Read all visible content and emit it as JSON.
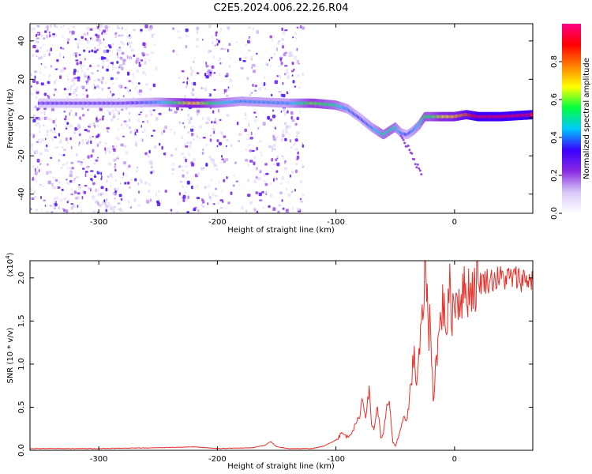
{
  "figure": {
    "title": "C2E5.2024.006.22.26.R04"
  },
  "chart_data": [
    {
      "type": "heatmap",
      "title": "",
      "xlabel": "Height of straight line (km)",
      "ylabel": "Frequency (Hz)",
      "xlim": [
        -358,
        66
      ],
      "ylim": [
        -50,
        49
      ],
      "x_ticks": [
        "-300",
        "-200",
        "-100",
        "0"
      ],
      "x_tick_values": [
        -300,
        -200,
        -100,
        0
      ],
      "y_ticks": [
        "-40",
        "-20",
        "0",
        "20",
        "40"
      ],
      "y_tick_values": [
        -40,
        -20,
        0,
        20,
        40
      ],
      "colorbar": {
        "label": "Normalized spectral amplitude",
        "range": [
          0,
          1
        ],
        "ticks": [
          "0.0",
          "0.2",
          "0.4",
          "0.6",
          "0.8"
        ],
        "tick_values": [
          0.0,
          0.2,
          0.4,
          0.6,
          0.8
        ],
        "colormap": [
          "#ffffff",
          "#d8c8f8",
          "#8a2be2",
          "#3a00ff",
          "#00c8ff",
          "#00ff40",
          "#ffff00",
          "#ff8000",
          "#ff0000",
          "#ff0088"
        ]
      },
      "signal_trace": {
        "x": [
          -350,
          -330,
          -280,
          -250,
          -220,
          -200,
          -180,
          -160,
          -140,
          -120,
          -100,
          -90,
          -80,
          -70,
          -60,
          -50,
          -45,
          -40,
          -35,
          -30,
          -25,
          -20,
          -10,
          0,
          10,
          20,
          40,
          66
        ],
        "freq": [
          7.5,
          7.5,
          7.5,
          8,
          7.5,
          7.5,
          8.5,
          8,
          7.5,
          7.5,
          6.5,
          4.5,
          0,
          -5,
          -9,
          -5,
          -8,
          -9,
          -7,
          -4,
          0.5,
          0.5,
          0.5,
          0.5,
          1.5,
          0.5,
          0.5,
          1.5
        ],
        "amplitude": [
          0.3,
          0.3,
          0.3,
          0.4,
          0.7,
          0.5,
          0.4,
          0.4,
          0.4,
          0.6,
          0.5,
          0.4,
          0.35,
          0.4,
          0.5,
          0.5,
          0.4,
          0.35,
          0.4,
          0.45,
          0.55,
          0.55,
          0.65,
          0.7,
          0.8,
          0.95,
          0.95,
          0.95
        ]
      },
      "noise_region": {
        "x_range": [
          -358,
          -128
        ]
      }
    },
    {
      "type": "line",
      "title": "",
      "xlabel": "Height of straight line (km)",
      "ylabel": "SNR (10 * v/v)",
      "y_multiplier": "(x10^4)",
      "xlim": [
        -358,
        66
      ],
      "ylim": [
        0,
        2.2
      ],
      "x_ticks": [
        "-300",
        "-200",
        "-100",
        "0"
      ],
      "x_tick_values": [
        -300,
        -200,
        -100,
        0
      ],
      "y_ticks": [
        "0.0",
        "0.5",
        "1.0",
        "1.5",
        "2.0"
      ],
      "y_tick_values": [
        0.0,
        0.5,
        1.0,
        1.5,
        2.0
      ],
      "series": [
        {
          "color": "#e8302a",
          "x": [
            -358,
            -300,
            -250,
            -220,
            -200,
            -170,
            -160,
            -155,
            -150,
            -140,
            -120,
            -110,
            -100,
            -95,
            -90,
            -85,
            -80,
            -78,
            -75,
            -72,
            -70,
            -68,
            -65,
            -62,
            -60,
            -57,
            -55,
            -52,
            -50,
            -47,
            -45,
            -43,
            -40,
            -38,
            -36,
            -34,
            -32,
            -30,
            -28,
            -26,
            -25,
            -24,
            -23,
            -22,
            -21,
            -20,
            -18,
            -16,
            -14,
            -12,
            -10,
            -8,
            -6,
            -4,
            -2,
            0,
            5,
            10,
            15,
            20,
            30,
            40,
            50,
            60,
            66
          ],
          "y": [
            0.02,
            0.02,
            0.03,
            0.04,
            0.02,
            0.03,
            0.06,
            0.1,
            0.04,
            0.02,
            0.02,
            0.05,
            0.12,
            0.2,
            0.15,
            0.25,
            0.4,
            0.6,
            0.4,
            0.7,
            0.3,
            0.25,
            0.5,
            0.15,
            0.2,
            0.5,
            0.55,
            0.1,
            0.05,
            0.15,
            0.25,
            0.4,
            0.35,
            0.6,
            0.9,
            1.05,
            0.8,
            1.1,
            1.4,
            1.6,
            2.2,
            1.8,
            2.2,
            1.2,
            1.6,
            1.3,
            0.6,
            1.0,
            1.2,
            1.5,
            1.7,
            1.55,
            1.5,
            1.85,
            1.6,
            1.75,
            1.8,
            1.85,
            1.9,
            1.95,
            1.98,
            2.0,
            2.0,
            1.99,
            1.97
          ]
        }
      ]
    }
  ]
}
